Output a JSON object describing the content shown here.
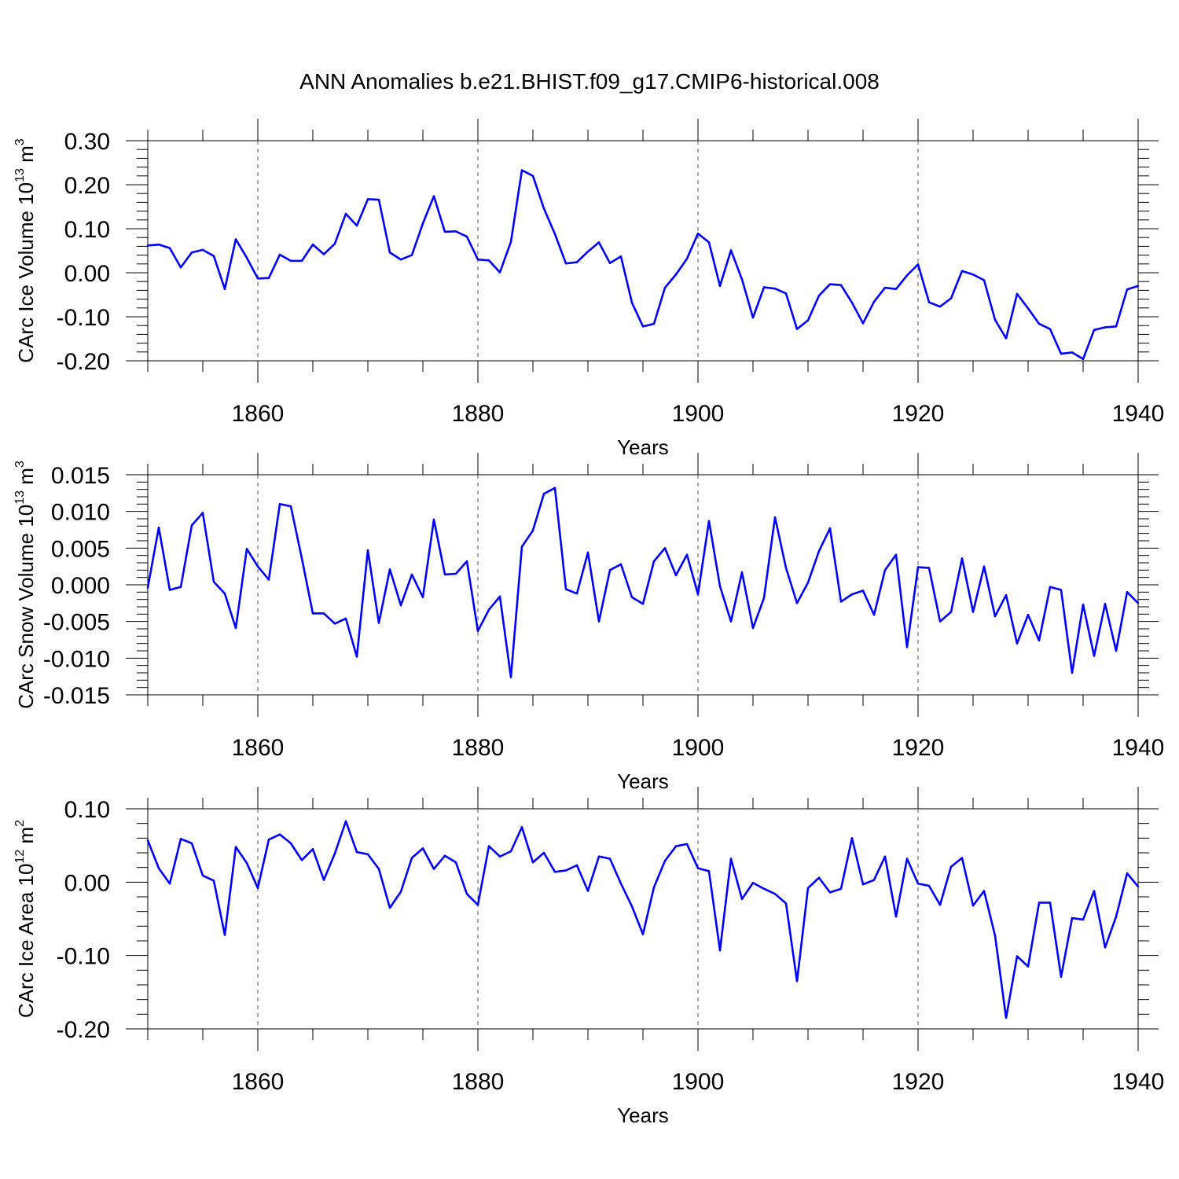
{
  "title": "ANN Anomalies b.e21.BHIST.f09_g17.CMIP6-historical.008",
  "chart_data": [
    {
      "type": "line",
      "ylabel": "CArc Ice Volume",
      "ylabel_unit_base": "10",
      "ylabel_unit_exp": "13",
      "ylabel_unit_tail": "m",
      "ylabel_unit_tail_exp": "3",
      "xlabel": "Years",
      "xlim": [
        1850,
        1940
      ],
      "ylim": [
        -0.2,
        0.3
      ],
      "xticks": [
        "1860",
        "1880",
        "1900",
        "1920",
        "1940"
      ],
      "xtick_values": [
        1860,
        1880,
        1900,
        1920,
        1940
      ],
      "yticks": [
        "-0.20",
        "-0.10",
        "0.00",
        "0.10",
        "0.20",
        "0.30"
      ],
      "ytick_values": [
        -0.2,
        -0.1,
        0.0,
        0.1,
        0.2,
        0.3
      ],
      "grid": "vertical dashed at major x ticks",
      "series": [
        {
          "name": "CArc Ice Volume",
          "color": "#0000ff",
          "x": [
            1850,
            1851,
            1852,
            1853,
            1854,
            1855,
            1856,
            1857,
            1858,
            1859,
            1860,
            1861,
            1862,
            1863,
            1864,
            1865,
            1866,
            1867,
            1868,
            1869,
            1870,
            1871,
            1872,
            1873,
            1874,
            1875,
            1876,
            1877,
            1878,
            1879,
            1880,
            1881,
            1882,
            1883,
            1884,
            1885,
            1886,
            1887,
            1888,
            1889,
            1890,
            1891,
            1892,
            1893,
            1894,
            1895,
            1896,
            1897,
            1898,
            1899,
            1900,
            1901,
            1902,
            1903,
            1904,
            1905,
            1906,
            1907,
            1908,
            1909,
            1910,
            1911,
            1912,
            1913,
            1914,
            1915,
            1916,
            1917,
            1918,
            1919,
            1920,
            1921,
            1922,
            1923,
            1924,
            1925,
            1926,
            1927,
            1928,
            1929,
            1930,
            1931,
            1932,
            1933,
            1934,
            1935,
            1936,
            1937,
            1938,
            1939,
            1940
          ],
          "values": [
            0.062,
            0.064,
            0.056,
            0.012,
            0.046,
            0.052,
            0.038,
            -0.037,
            0.076,
            0.034,
            -0.013,
            -0.012,
            0.041,
            0.027,
            0.027,
            0.064,
            0.042,
            0.066,
            0.134,
            0.107,
            0.167,
            0.166,
            0.046,
            0.03,
            0.04,
            0.112,
            0.174,
            0.093,
            0.094,
            0.082,
            0.03,
            0.028,
            0.001,
            0.07,
            0.233,
            0.22,
            0.146,
            0.088,
            0.021,
            0.024,
            0.048,
            0.069,
            0.022,
            0.037,
            -0.068,
            -0.122,
            -0.116,
            -0.034,
            -0.004,
            0.032,
            0.089,
            0.069,
            -0.03,
            0.051,
            -0.015,
            -0.102,
            -0.033,
            -0.036,
            -0.047,
            -0.128,
            -0.108,
            -0.052,
            -0.026,
            -0.028,
            -0.068,
            -0.115,
            -0.066,
            -0.034,
            -0.037,
            -0.006,
            0.019,
            -0.067,
            -0.077,
            -0.058,
            0.004,
            -0.004,
            -0.017,
            -0.107,
            -0.149,
            -0.048,
            -0.081,
            -0.116,
            -0.128,
            -0.184,
            -0.181,
            -0.196,
            -0.13,
            -0.124,
            -0.122,
            -0.038,
            -0.03
          ]
        }
      ]
    },
    {
      "type": "line",
      "ylabel": "CArc Snow Volume",
      "ylabel_unit_base": "10",
      "ylabel_unit_exp": "13",
      "ylabel_unit_tail": "m",
      "ylabel_unit_tail_exp": "3",
      "xlabel": "Years",
      "xlim": [
        1850,
        1940
      ],
      "ylim": [
        -0.015,
        0.015
      ],
      "xticks": [
        "1860",
        "1880",
        "1900",
        "1920",
        "1940"
      ],
      "xtick_values": [
        1860,
        1880,
        1900,
        1920,
        1940
      ],
      "yticks": [
        "-0.015",
        "-0.010",
        "-0.005",
        "0.000",
        "0.005",
        "0.010",
        "0.015"
      ],
      "ytick_values": [
        -0.015,
        -0.01,
        -0.005,
        0.0,
        0.005,
        0.01,
        0.015
      ],
      "grid": "vertical dashed at major x ticks",
      "series": [
        {
          "name": "CArc Snow Volume",
          "color": "#0000ff",
          "x": [
            1850,
            1851,
            1852,
            1853,
            1854,
            1855,
            1856,
            1857,
            1858,
            1859,
            1860,
            1861,
            1862,
            1863,
            1864,
            1865,
            1866,
            1867,
            1868,
            1869,
            1870,
            1871,
            1872,
            1873,
            1874,
            1875,
            1876,
            1877,
            1878,
            1879,
            1880,
            1881,
            1882,
            1883,
            1884,
            1885,
            1886,
            1887,
            1888,
            1889,
            1890,
            1891,
            1892,
            1893,
            1894,
            1895,
            1896,
            1897,
            1898,
            1899,
            1900,
            1901,
            1902,
            1903,
            1904,
            1905,
            1906,
            1907,
            1908,
            1909,
            1910,
            1911,
            1912,
            1913,
            1914,
            1915,
            1916,
            1917,
            1918,
            1919,
            1920,
            1921,
            1922,
            1923,
            1924,
            1925,
            1926,
            1927,
            1928,
            1929,
            1930,
            1931,
            1932,
            1933,
            1934,
            1935,
            1936,
            1937,
            1938,
            1939,
            1940
          ],
          "values": [
            -0.0004,
            0.0078,
            -0.0007,
            -0.0003,
            0.0081,
            0.0098,
            0.0004,
            -0.0012,
            -0.0059,
            0.0049,
            0.0025,
            0.0007,
            0.011,
            0.0107,
            0.0036,
            -0.0039,
            -0.0039,
            -0.0053,
            -0.0046,
            -0.0098,
            0.0047,
            -0.0052,
            0.0021,
            -0.0028,
            0.0014,
            -0.0017,
            0.0089,
            0.0014,
            0.0015,
            0.0032,
            -0.0063,
            -0.0034,
            -0.0016,
            -0.0126,
            0.0052,
            0.0074,
            0.0124,
            0.0132,
            -0.0006,
            -0.0012,
            0.0044,
            -0.005,
            0.002,
            0.0028,
            -0.0017,
            -0.0026,
            0.0032,
            0.005,
            0.0013,
            0.0041,
            -0.0013,
            0.0087,
            -0.0002,
            -0.005,
            0.0017,
            -0.0059,
            -0.0018,
            0.0092,
            0.0023,
            -0.0025,
            0.0003,
            0.0046,
            0.0077,
            -0.0023,
            -0.0013,
            -0.0008,
            -0.0041,
            0.002,
            0.0041,
            -0.0085,
            0.0024,
            0.0023,
            -0.005,
            -0.0037,
            0.0036,
            -0.0037,
            0.0025,
            -0.0043,
            -0.0014,
            -0.008,
            -0.0041,
            -0.0076,
            -0.0003,
            -0.0007,
            -0.012,
            -0.0027,
            -0.0097,
            -0.0026,
            -0.009,
            -0.001,
            -0.0025
          ]
        }
      ]
    },
    {
      "type": "line",
      "ylabel": "CArc Ice Area",
      "ylabel_unit_base": "10",
      "ylabel_unit_exp": "12",
      "ylabel_unit_tail": "m",
      "ylabel_unit_tail_exp": "2",
      "xlabel": "Years",
      "xlim": [
        1850,
        1940
      ],
      "ylim": [
        -0.2,
        0.1
      ],
      "xticks": [
        "1860",
        "1880",
        "1900",
        "1920",
        "1940"
      ],
      "xtick_values": [
        1860,
        1880,
        1900,
        1920,
        1940
      ],
      "yticks": [
        "-0.20",
        "-0.10",
        "0.00",
        "0.10"
      ],
      "ytick_values": [
        -0.2,
        -0.1,
        0.0,
        0.1
      ],
      "grid": "vertical dashed at major x ticks",
      "series": [
        {
          "name": "CArc Ice Area",
          "color": "#0000ff",
          "x": [
            1850,
            1851,
            1852,
            1853,
            1854,
            1855,
            1856,
            1857,
            1858,
            1859,
            1860,
            1861,
            1862,
            1863,
            1864,
            1865,
            1866,
            1867,
            1868,
            1869,
            1870,
            1871,
            1872,
            1873,
            1874,
            1875,
            1876,
            1877,
            1878,
            1879,
            1880,
            1881,
            1882,
            1883,
            1884,
            1885,
            1886,
            1887,
            1888,
            1889,
            1890,
            1891,
            1892,
            1893,
            1894,
            1895,
            1896,
            1897,
            1898,
            1899,
            1900,
            1901,
            1902,
            1903,
            1904,
            1905,
            1906,
            1907,
            1908,
            1909,
            1910,
            1911,
            1912,
            1913,
            1914,
            1915,
            1916,
            1917,
            1918,
            1919,
            1920,
            1921,
            1922,
            1923,
            1924,
            1925,
            1926,
            1927,
            1928,
            1929,
            1930,
            1931,
            1932,
            1933,
            1934,
            1935,
            1936,
            1937,
            1938,
            1939,
            1940
          ],
          "values": [
            0.057,
            0.019,
            -0.002,
            0.059,
            0.053,
            0.009,
            0.002,
            -0.072,
            0.048,
            0.026,
            -0.008,
            0.058,
            0.065,
            0.053,
            0.03,
            0.045,
            0.003,
            0.039,
            0.083,
            0.041,
            0.038,
            0.018,
            -0.035,
            -0.013,
            0.033,
            0.046,
            0.018,
            0.036,
            0.027,
            -0.016,
            -0.031,
            0.049,
            0.035,
            0.042,
            0.075,
            0.027,
            0.04,
            0.014,
            0.016,
            0.023,
            -0.012,
            0.035,
            0.032,
            -0.002,
            -0.033,
            -0.071,
            -0.007,
            0.029,
            0.049,
            0.052,
            0.019,
            0.015,
            -0.093,
            0.032,
            -0.023,
            -0.001,
            -0.009,
            -0.016,
            -0.029,
            -0.135,
            -0.008,
            0.006,
            -0.014,
            -0.009,
            0.06,
            -0.003,
            0.003,
            0.035,
            -0.047,
            0.032,
            -0.002,
            -0.005,
            -0.031,
            0.021,
            0.033,
            -0.032,
            -0.012,
            -0.073,
            -0.185,
            -0.101,
            -0.115,
            -0.028,
            -0.028,
            -0.129,
            -0.049,
            -0.051,
            -0.012,
            -0.089,
            -0.047,
            0.012,
            -0.006
          ]
        }
      ]
    }
  ]
}
